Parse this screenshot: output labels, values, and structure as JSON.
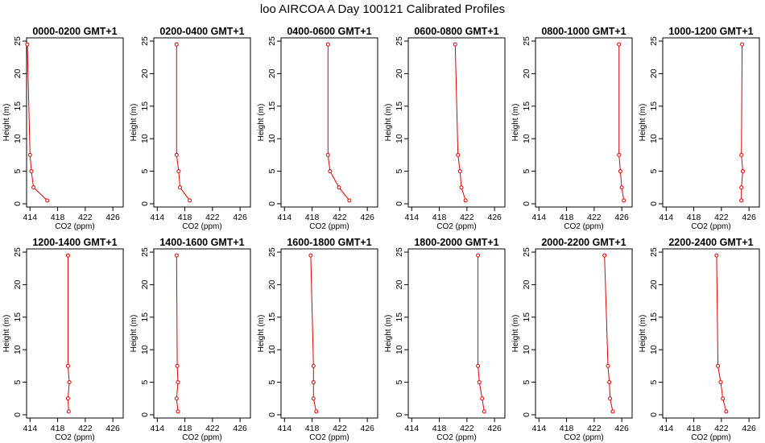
{
  "title": "loo AIRCOA A  Day 100121  Calibrated Profiles",
  "colors": {
    "series": "#dd0000",
    "axis": "#000000",
    "background": "#ffffff"
  },
  "chart_data": {
    "type": "line",
    "layout": "2x6 grid of profile panels",
    "xlabel": "CO2 (ppm)",
    "ylabel": "Height (m)",
    "xlim": [
      413.5,
      427.5
    ],
    "ylim": [
      -0.5,
      25.5
    ],
    "xticks": [
      414,
      418,
      422,
      426
    ],
    "yticks": [
      0,
      5,
      10,
      15,
      20,
      25
    ],
    "heights": [
      0.5,
      2.5,
      5,
      7.5,
      24.5
    ],
    "panels": [
      {
        "title": "0000-0200 GMT+1",
        "co2": [
          416.5,
          414.5,
          414.2,
          414.0,
          413.6
        ]
      },
      {
        "title": "0200-0400 GMT+1",
        "co2": [
          418.7,
          417.3,
          417.1,
          416.8,
          416.8
        ]
      },
      {
        "title": "0400-0600 GMT+1",
        "co2": [
          423.4,
          421.9,
          420.6,
          420.3,
          420.3
        ]
      },
      {
        "title": "0600-0800 GMT+1",
        "co2": [
          421.8,
          421.2,
          421.0,
          420.7,
          420.3
        ]
      },
      {
        "title": "0800-1000 GMT+1",
        "co2": [
          426.3,
          426.0,
          425.8,
          425.6,
          425.6
        ]
      },
      {
        "title": "1000-1200 GMT+1",
        "co2": [
          424.9,
          424.9,
          425.1,
          424.9,
          425.0
        ]
      },
      {
        "title": "1200-1400 GMT+1",
        "co2": [
          419.6,
          419.5,
          419.7,
          419.5,
          419.5
        ]
      },
      {
        "title": "1400-1600 GMT+1",
        "co2": [
          417.0,
          416.8,
          417.0,
          416.9,
          416.8
        ]
      },
      {
        "title": "1600-1800 GMT+1",
        "co2": [
          418.6,
          418.2,
          418.2,
          418.2,
          417.8
        ]
      },
      {
        "title": "1800-2000 GMT+1",
        "co2": [
          424.5,
          424.2,
          423.8,
          423.6,
          423.6
        ]
      },
      {
        "title": "2000-2200 GMT+1",
        "co2": [
          424.7,
          424.3,
          424.2,
          424.0,
          423.5
        ]
      },
      {
        "title": "2200-2400 GMT+1",
        "co2": [
          422.7,
          422.2,
          421.9,
          421.5,
          421.3
        ]
      }
    ]
  }
}
